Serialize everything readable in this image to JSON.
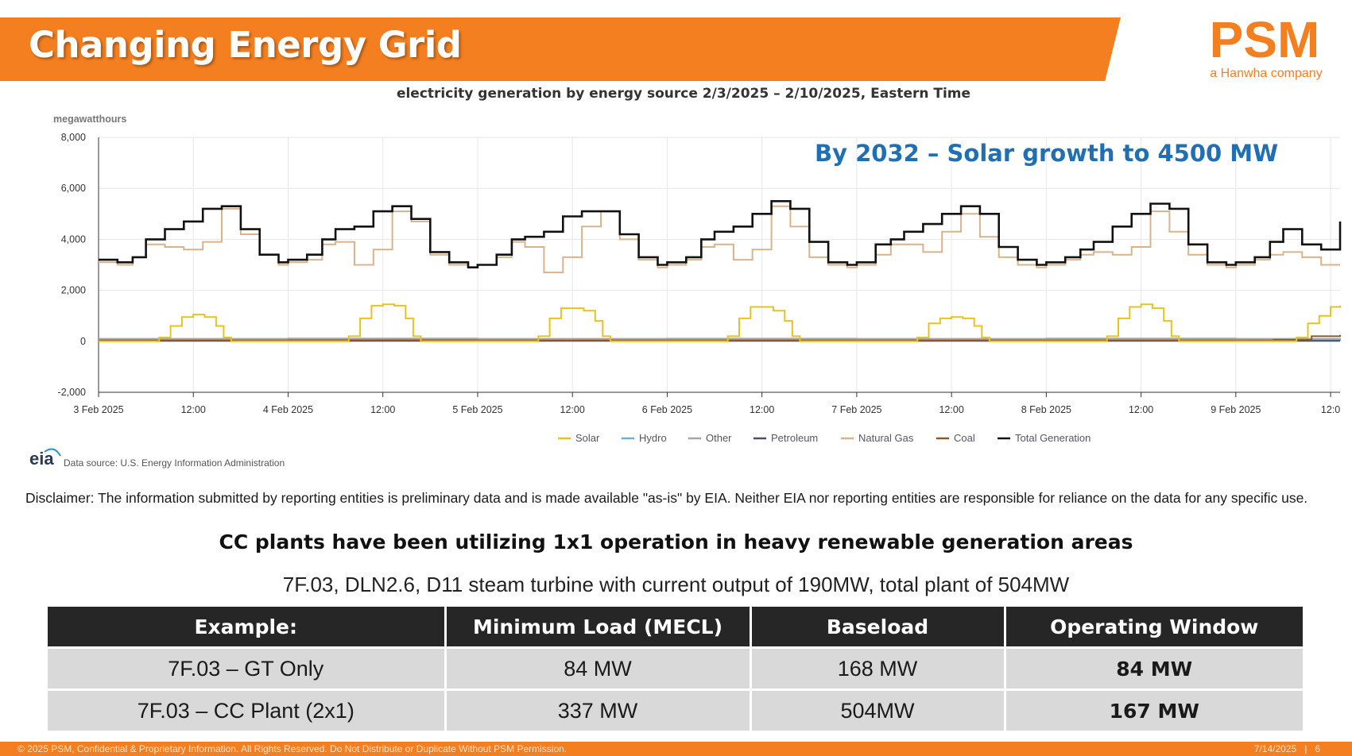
{
  "slide": {
    "title": "Changing Energy Grid",
    "callout": "By 2032 – Solar growth to 4500 MW",
    "disclaimer": "Disclaimer: The information submitted by reporting entities is preliminary data and is made available \"as-is\" by EIA. Neither EIA nor reporting entities are responsible for reliance on the data for any specific use.",
    "headline": "CC plants have been utilizing 1x1 operation in heavy renewable generation areas",
    "subline": "7F.03, DLN2.6, D11 steam turbine with current output of 190MW, total plant of 504MW"
  },
  "logo": {
    "name": "PSM",
    "tagline": "a Hanwha company",
    "color": "#f47f20"
  },
  "table": {
    "headers": [
      "Example:",
      "Minimum Load (MECL)",
      "Baseload",
      "Operating Window"
    ],
    "rows": [
      [
        "7F.03 – GT Only",
        "84 MW",
        "168 MW",
        "84 MW"
      ],
      [
        "7F.03 – CC Plant (2x1)",
        "337 MW",
        "504MW",
        "167 MW"
      ]
    ]
  },
  "footer": {
    "left": "© 2025 PSM, Confidential & Proprietary Information. All Rights Reserved. Do Not Distribute or Duplicate Without PSM Permission.",
    "date": "7/14/2025",
    "page": "6"
  },
  "chart_data": {
    "type": "line",
    "title": "electricity generation by energy source 2/3/2025 – 2/10/2025, Eastern Time",
    "ylabel": "megawatthours",
    "xlabel": "",
    "ylim": [
      -2000,
      8000
    ],
    "yticks": [
      -2000,
      0,
      2000,
      4000,
      6000,
      8000
    ],
    "ytick_labels": [
      "-2,000",
      "0",
      "2,000",
      "4,000",
      "6,000",
      "8,000"
    ],
    "xlim": [
      0,
      6.55
    ],
    "xticks": [
      0,
      0.5,
      1,
      1.5,
      2,
      2.5,
      3,
      3.5,
      4,
      4.5,
      5,
      5.5,
      6,
      6.5
    ],
    "xtick_labels": [
      "3 Feb 2025",
      "12:00",
      "4 Feb 2025",
      "12:00",
      "5 Feb 2025",
      "12:00",
      "6 Feb 2025",
      "12:00",
      "7 Feb 2025",
      "12:00",
      "8 Feb 2025",
      "12:00",
      "9 Feb 2025",
      "12:0"
    ],
    "grid": true,
    "legend_position": "bottom",
    "source": "Data source: U.S. Energy Information Administration",
    "source_logo": "eia",
    "series": [
      {
        "name": "Solar",
        "color": "#e8c21e",
        "x": [
          0,
          0.25,
          0.32,
          0.38,
          0.44,
          0.5,
          0.56,
          0.62,
          0.66,
          0.7,
          1,
          1.25,
          1.32,
          1.38,
          1.44,
          1.5,
          1.56,
          1.62,
          1.66,
          1.7,
          2,
          2.25,
          2.32,
          2.38,
          2.44,
          2.5,
          2.56,
          2.62,
          2.66,
          2.7,
          3,
          3.25,
          3.32,
          3.38,
          3.44,
          3.5,
          3.56,
          3.62,
          3.66,
          3.7,
          4,
          4.25,
          4.32,
          4.38,
          4.44,
          4.5,
          4.56,
          4.62,
          4.66,
          4.7,
          5,
          5.25,
          5.32,
          5.38,
          5.44,
          5.5,
          5.56,
          5.62,
          5.66,
          5.7,
          6,
          6.25,
          6.32,
          6.38,
          6.44,
          6.5,
          6.55
        ],
        "values": [
          0,
          0,
          150,
          600,
          950,
          1050,
          950,
          600,
          150,
          0,
          0,
          0,
          200,
          900,
          1400,
          1450,
          1400,
          900,
          200,
          0,
          0,
          0,
          200,
          900,
          1300,
          1300,
          1200,
          800,
          200,
          0,
          0,
          0,
          200,
          900,
          1350,
          1350,
          1200,
          800,
          200,
          0,
          0,
          0,
          150,
          700,
          900,
          950,
          900,
          600,
          150,
          0,
          0,
          0,
          200,
          900,
          1350,
          1450,
          1300,
          800,
          200,
          0,
          0,
          0,
          150,
          700,
          1000,
          1350,
          1400
        ]
      },
      {
        "name": "Hydro",
        "color": "#6baed6",
        "x": [
          0,
          1,
          2,
          3,
          4,
          5,
          6,
          6.55
        ],
        "values": [
          50,
          60,
          50,
          55,
          50,
          60,
          50,
          80
        ]
      },
      {
        "name": "Other",
        "color": "#a6a6a6",
        "x": [
          0,
          1,
          2,
          3,
          4,
          5,
          6,
          6.55
        ],
        "values": [
          100,
          110,
          100,
          105,
          100,
          110,
          100,
          120
        ]
      },
      {
        "name": "Petroleum",
        "color": "#4a4e69",
        "x": [
          0,
          1,
          2,
          3,
          4,
          5,
          6,
          6.55
        ],
        "values": [
          20,
          20,
          20,
          20,
          20,
          20,
          20,
          20
        ]
      },
      {
        "name": "Natural Gas",
        "color": "#d9b38c",
        "x": [
          0,
          0.1,
          0.18,
          0.25,
          0.35,
          0.45,
          0.55,
          0.65,
          0.75,
          0.85,
          0.95,
          1,
          1.1,
          1.18,
          1.25,
          1.35,
          1.45,
          1.55,
          1.65,
          1.75,
          1.85,
          1.95,
          2,
          2.1,
          2.18,
          2.25,
          2.35,
          2.45,
          2.55,
          2.65,
          2.75,
          2.85,
          2.95,
          3,
          3.1,
          3.18,
          3.25,
          3.35,
          3.45,
          3.55,
          3.65,
          3.75,
          3.85,
          3.95,
          4,
          4.1,
          4.18,
          4.25,
          4.35,
          4.45,
          4.55,
          4.65,
          4.75,
          4.85,
          4.95,
          5,
          5.1,
          5.18,
          5.25,
          5.35,
          5.45,
          5.55,
          5.65,
          5.75,
          5.85,
          5.95,
          6,
          6.1,
          6.18,
          6.25,
          6.35,
          6.45,
          6.55
        ],
        "values": [
          3100,
          3000,
          3300,
          3800,
          3700,
          3600,
          3900,
          5200,
          4200,
          3400,
          3000,
          3100,
          3200,
          3800,
          3900,
          3000,
          3600,
          5100,
          4700,
          3400,
          3000,
          2900,
          3000,
          3300,
          3900,
          3700,
          2700,
          3300,
          4500,
          5100,
          4000,
          3200,
          2900,
          3000,
          3200,
          3700,
          3800,
          3200,
          3600,
          5300,
          4500,
          3300,
          3000,
          2900,
          3000,
          3400,
          3800,
          3800,
          3500,
          4300,
          5000,
          4100,
          3300,
          3000,
          2900,
          3000,
          3200,
          3400,
          3500,
          3400,
          3700,
          5100,
          4300,
          3400,
          3000,
          2900,
          3000,
          3200,
          3400,
          3500,
          3300,
          3000,
          3000
        ]
      },
      {
        "name": "Coal",
        "color": "#8c5a2b",
        "x": [
          0,
          1,
          2,
          3,
          4,
          5,
          6,
          6.2,
          6.4,
          6.55
        ],
        "values": [
          30,
          40,
          30,
          30,
          30,
          30,
          30,
          60,
          200,
          250
        ]
      },
      {
        "name": "Total Generation",
        "color": "#111111",
        "x": [
          0,
          0.1,
          0.18,
          0.25,
          0.35,
          0.45,
          0.55,
          0.65,
          0.75,
          0.85,
          0.95,
          1,
          1.1,
          1.18,
          1.25,
          1.35,
          1.45,
          1.55,
          1.65,
          1.75,
          1.85,
          1.95,
          2,
          2.1,
          2.18,
          2.25,
          2.35,
          2.45,
          2.55,
          2.65,
          2.75,
          2.85,
          2.95,
          3,
          3.1,
          3.18,
          3.25,
          3.35,
          3.45,
          3.55,
          3.65,
          3.75,
          3.85,
          3.95,
          4,
          4.1,
          4.18,
          4.25,
          4.35,
          4.45,
          4.55,
          4.65,
          4.75,
          4.85,
          4.95,
          5,
          5.1,
          5.18,
          5.25,
          5.35,
          5.45,
          5.55,
          5.65,
          5.75,
          5.85,
          5.95,
          6,
          6.1,
          6.18,
          6.25,
          6.35,
          6.45,
          6.55
        ],
        "values": [
          3200,
          3100,
          3300,
          4000,
          4400,
          4700,
          5200,
          5300,
          4400,
          3400,
          3100,
          3200,
          3400,
          4000,
          4400,
          4500,
          5100,
          5300,
          4800,
          3500,
          3100,
          2900,
          3000,
          3400,
          4000,
          4100,
          4300,
          4900,
          5100,
          5100,
          4200,
          3300,
          3000,
          3100,
          3300,
          4000,
          4300,
          4500,
          5000,
          5500,
          5200,
          3900,
          3100,
          3000,
          3100,
          3800,
          4000,
          4300,
          4600,
          5000,
          5300,
          5000,
          3700,
          3200,
          3000,
          3100,
          3300,
          3600,
          3900,
          4500,
          5000,
          5400,
          5200,
          3800,
          3100,
          3000,
          3100,
          3300,
          3900,
          4400,
          3800,
          3600,
          4700
        ]
      }
    ]
  }
}
